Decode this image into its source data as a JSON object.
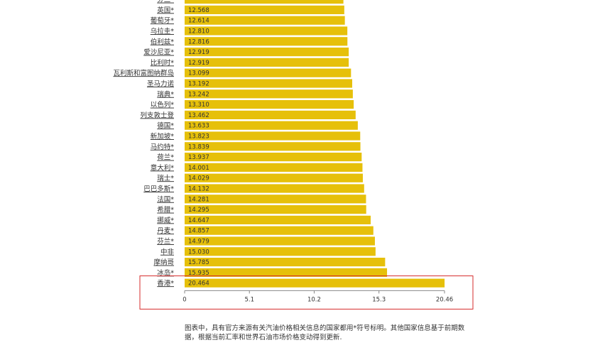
{
  "chart_data": {
    "type": "bar",
    "orientation": "horizontal",
    "categories": [
      "芬兰*",
      "英国*",
      "葡萄牙*",
      "乌拉圭*",
      "伯利兹*",
      "爱沙尼亚*",
      "比利时*",
      "瓦利斯和富图纳群岛",
      "圣马力诺",
      "瑞典*",
      "以色列*",
      "列支敦士登",
      "德国*",
      "新加坡*",
      "马约特*",
      "荷兰*",
      "意大利*",
      "瑞士*",
      "巴巴多斯*",
      "法国*",
      "希腊*",
      "挪威*",
      "丹麦*",
      "芬兰*",
      "中非",
      "摩纳哥",
      "冰岛*",
      "香港*"
    ],
    "values": [
      12.5,
      12.568,
      12.614,
      12.81,
      12.816,
      12.919,
      12.919,
      13.099,
      13.192,
      13.242,
      13.31,
      13.462,
      13.633,
      13.823,
      13.839,
      13.937,
      14.001,
      14.029,
      14.132,
      14.281,
      14.295,
      14.647,
      14.857,
      14.979,
      15.03,
      15.785,
      15.935,
      20.464
    ],
    "value_labels": [
      "",
      "12.568",
      "12.614",
      "12.810",
      "12.816",
      "12.919",
      "12.919",
      "13.099",
      "13.192",
      "13.242",
      "13.310",
      "13.462",
      "13.633",
      "13.823",
      "13.839",
      "13.937",
      "14.001",
      "14.029",
      "14.132",
      "14.281",
      "14.295",
      "14.647",
      "14.857",
      "14.979",
      "15.030",
      "15.785",
      "15.935",
      "20.464"
    ],
    "xlim": [
      0,
      20.46
    ],
    "xticks": [
      "0",
      "5.1",
      "10.2",
      "15.3",
      "20.46"
    ],
    "bar_color": "#e6c00a",
    "highlight_box_color": "#d62b2b",
    "highlighted_category": "香港*",
    "grid": false
  },
  "footnote": "图表中，具有官方来源有关汽油价格相关信息的国家都用*符号标明。其他国家信息基于前期数据，根据当前汇率和世界石油市场价格变动得到更新."
}
